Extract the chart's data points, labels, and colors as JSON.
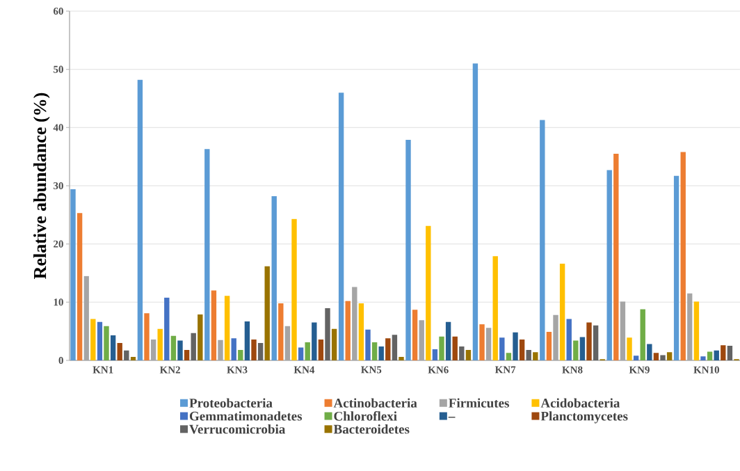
{
  "chart_data": {
    "type": "bar",
    "ylabel": "Relative abundance (%)",
    "categories": [
      "KN1",
      "KN2",
      "KN3",
      "KN4",
      "KN5",
      "KN6",
      "KN7",
      "KN8",
      "KN9",
      "KN10"
    ],
    "series": [
      {
        "name": "Proteobacteria",
        "color": "#5b9bd5",
        "values": [
          29.4,
          48.2,
          36.3,
          28.2,
          46.0,
          37.9,
          51.0,
          41.3,
          32.7,
          31.7
        ]
      },
      {
        "name": "Actinobacteria",
        "color": "#ed7d31",
        "values": [
          25.3,
          8.1,
          12.0,
          9.8,
          10.2,
          8.7,
          6.2,
          4.9,
          35.5,
          35.8
        ]
      },
      {
        "name": "Firmicutes",
        "color": "#a5a5a5",
        "values": [
          14.5,
          3.6,
          3.5,
          5.9,
          12.6,
          6.9,
          5.6,
          7.8,
          10.1,
          11.5
        ]
      },
      {
        "name": "Acidobacteria",
        "color": "#ffc000",
        "values": [
          7.1,
          5.4,
          11.1,
          24.3,
          9.8,
          23.1,
          17.9,
          16.6,
          3.9,
          10.1
        ]
      },
      {
        "name": "Gemmatimonadetes",
        "color": "#4472c4",
        "values": [
          6.6,
          10.8,
          3.8,
          2.2,
          5.3,
          1.9,
          3.9,
          7.1,
          0.8,
          0.7
        ]
      },
      {
        "name": "Chloroflexi",
        "color": "#70ad47",
        "values": [
          5.9,
          4.2,
          1.8,
          3.1,
          3.1,
          4.1,
          1.3,
          3.4,
          8.8,
          1.5
        ]
      },
      {
        "name": "_",
        "color": "#255e91",
        "values": [
          4.3,
          3.4,
          6.7,
          6.5,
          2.4,
          6.6,
          4.8,
          4.0,
          2.8,
          1.7
        ]
      },
      {
        "name": "Planctomycetes",
        "color": "#9e480e",
        "values": [
          3.0,
          1.8,
          3.6,
          3.6,
          3.8,
          4.1,
          3.6,
          6.5,
          1.3,
          2.6
        ]
      },
      {
        "name": "Verrucomicrobia",
        "color": "#636363",
        "values": [
          1.7,
          4.7,
          3.0,
          9.0,
          4.4,
          2.4,
          1.8,
          6.0,
          0.9,
          2.5
        ]
      },
      {
        "name": "Bacteroidetes",
        "color": "#997300",
        "values": [
          0.6,
          7.9,
          16.2,
          5.4,
          0.6,
          1.8,
          1.4,
          0.2,
          1.4,
          0.2
        ]
      }
    ],
    "ylim": [
      0,
      60
    ],
    "yticks": [
      0,
      10,
      20,
      30,
      40,
      50,
      60
    ],
    "grid": "y",
    "legend": "bottom"
  }
}
